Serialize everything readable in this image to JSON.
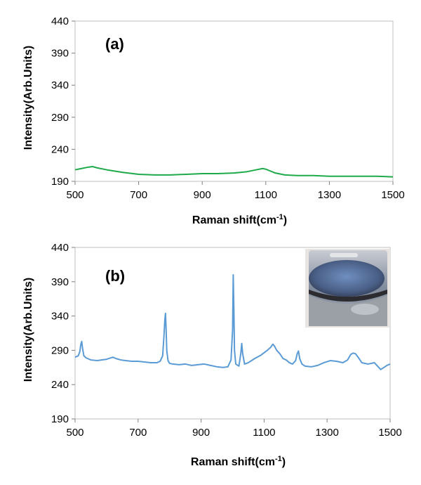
{
  "chart_data": [
    {
      "type": "line",
      "panel_label": "(a)",
      "xlabel": "Raman shift(cm",
      "xlabel_sup": "-1",
      "xlabel_suffix": ")",
      "ylabel": "Intensity(Arb.Units)",
      "xlim": [
        500,
        1500
      ],
      "ylim": [
        190,
        440
      ],
      "xticks": [
        500,
        700,
        900,
        1100,
        1300,
        1500
      ],
      "yticks": [
        190,
        240,
        290,
        340,
        390,
        440
      ],
      "grid": false,
      "line_color": "#1faa4a",
      "series": [
        {
          "x": [
            500,
            520,
            540,
            555,
            570,
            600,
            650,
            700,
            750,
            800,
            850,
            900,
            950,
            1000,
            1040,
            1070,
            1090,
            1100,
            1110,
            1130,
            1160,
            1200,
            1250,
            1300,
            1350,
            1400,
            1450,
            1500
          ],
          "y": [
            208,
            210,
            212,
            213,
            211,
            208,
            204,
            201,
            200,
            200,
            201,
            202,
            202,
            203,
            205,
            208,
            210,
            209,
            207,
            203,
            200,
            199,
            199,
            198,
            198,
            198,
            198,
            197
          ]
        }
      ]
    },
    {
      "type": "line",
      "panel_label": "(b)",
      "xlabel": "Raman shift(cm",
      "xlabel_sup": "-1",
      "xlabel_suffix": ")",
      "ylabel": "Intensity(Arb.Units)",
      "xlim": [
        500,
        1500
      ],
      "ylim": [
        190,
        440
      ],
      "xticks": [
        500,
        700,
        900,
        1100,
        1300,
        1500
      ],
      "yticks": [
        190,
        240,
        290,
        340,
        390,
        440
      ],
      "grid": false,
      "line_color": "#5b9bd5",
      "has_inset_photo": true,
      "series": [
        {
          "x": [
            500,
            505,
            510,
            515,
            518,
            521,
            524,
            528,
            535,
            550,
            570,
            600,
            620,
            630,
            645,
            660,
            680,
            700,
            720,
            740,
            760,
            770,
            778,
            782,
            785,
            787,
            789,
            791,
            795,
            800,
            810,
            830,
            850,
            870,
            890,
            910,
            930,
            950,
            970,
            985,
            995,
            1000,
            1002,
            1004,
            1006,
            1010,
            1020,
            1026,
            1029,
            1032,
            1038,
            1050,
            1070,
            1090,
            1110,
            1120,
            1128,
            1133,
            1140,
            1150,
            1160,
            1170,
            1180,
            1190,
            1200,
            1205,
            1209,
            1213,
            1220,
            1230,
            1250,
            1270,
            1290,
            1310,
            1330,
            1350,
            1365,
            1375,
            1383,
            1390,
            1400,
            1410,
            1430,
            1450,
            1460,
            1470,
            1480,
            1490,
            1500
          ],
          "y": [
            280,
            281,
            282,
            288,
            298,
            303,
            292,
            282,
            279,
            276,
            275,
            277,
            280,
            278,
            276,
            275,
            274,
            274,
            273,
            272,
            272,
            274,
            282,
            310,
            335,
            344,
            320,
            290,
            275,
            271,
            270,
            269,
            270,
            268,
            269,
            270,
            268,
            266,
            265,
            266,
            276,
            320,
            400,
            350,
            290,
            270,
            267,
            285,
            300,
            285,
            270,
            272,
            278,
            283,
            290,
            294,
            299,
            296,
            290,
            285,
            278,
            276,
            272,
            270,
            275,
            285,
            289,
            278,
            270,
            267,
            266,
            268,
            272,
            275,
            274,
            272,
            276,
            284,
            286,
            285,
            279,
            272,
            270,
            272,
            267,
            262,
            265,
            268,
            270
          ]
        }
      ]
    }
  ]
}
